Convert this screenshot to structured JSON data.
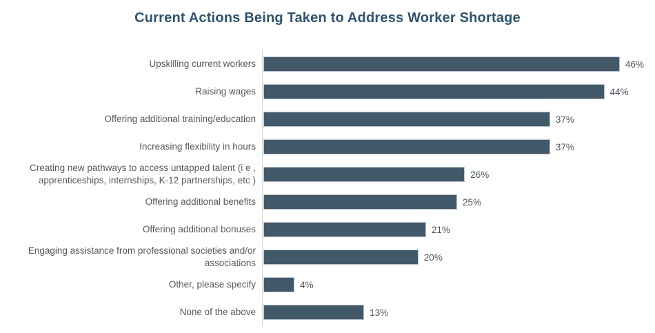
{
  "chart_data": {
    "type": "bar",
    "orientation": "horizontal",
    "title": "Current Actions Being Taken to Address Worker Shortage",
    "categories": [
      "Upskilling current workers",
      "Raising wages",
      "Offering additional training/education",
      "Increasing flexibility in hours",
      "Creating new pathways to access untapped talent (i e ,\napprenticeships, internships, K-12 partnerships, etc )",
      "Offering additional benefits",
      "Offering additional bonuses",
      "Engaging assistance from professional societies and/or\nassociations",
      "Other, please specify",
      "None of the above"
    ],
    "values": [
      46,
      44,
      37,
      37,
      26,
      25,
      21,
      20,
      4,
      13
    ],
    "value_suffix": "%",
    "xlabel": "",
    "ylabel": "",
    "xlim": [
      0,
      50
    ],
    "grid": false,
    "legend": false,
    "colors": {
      "bar": "#42596a",
      "bar_outline": "#b7c3cc",
      "title": "#2d5373",
      "category_label": "#595959",
      "value_label": "#4b545e",
      "axis_line": "#d9d9d9",
      "background": "#ffffff"
    }
  }
}
